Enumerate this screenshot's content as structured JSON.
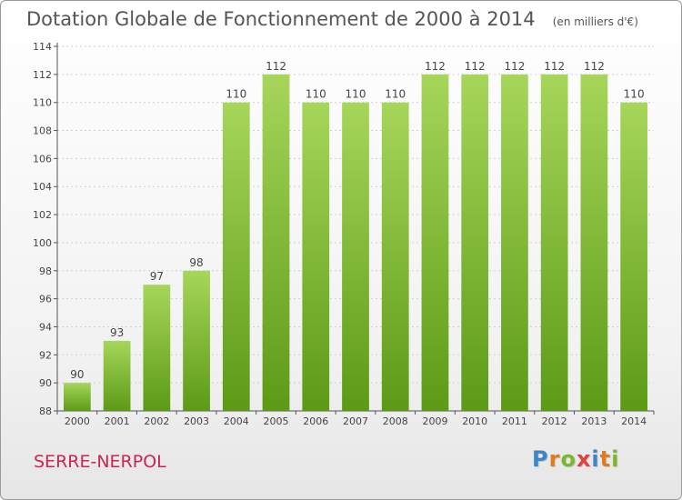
{
  "chart_data": {
    "type": "bar",
    "title": "Dotation Globale de Fonctionnement de 2000 à 2014",
    "subtitle": "(en milliers d'€)",
    "xlabel": "",
    "ylabel": "",
    "categories": [
      "2000",
      "2001",
      "2002",
      "2003",
      "2004",
      "2005",
      "2006",
      "2007",
      "2008",
      "2009",
      "2010",
      "2011",
      "2012",
      "2013",
      "2014"
    ],
    "values": [
      90,
      93,
      97,
      98,
      110,
      112,
      110,
      110,
      110,
      112,
      112,
      112,
      112,
      112,
      110
    ],
    "ylim": [
      88,
      114
    ],
    "yticks": [
      88,
      90,
      92,
      94,
      96,
      98,
      100,
      102,
      104,
      106,
      108,
      110,
      112,
      114
    ],
    "grid": true,
    "legend": "none",
    "bar_color_top": "#a6d65a",
    "bar_color_bottom": "#5c9a16"
  },
  "footer": {
    "commune": "SERRE-NERPOL",
    "brand_letters": [
      "P",
      "r",
      "o",
      "x",
      "i",
      "t",
      "i"
    ],
    "brand_colors": [
      "#3a86c8",
      "#e07b22",
      "#7cb82f",
      "#e23f3f",
      "#3a86c8",
      "#e07b22",
      "#7cb82f"
    ]
  },
  "colors": {
    "title": "#555555",
    "commune": "#c8274e",
    "grid": "#cfcfcf",
    "axis": "#555555"
  }
}
